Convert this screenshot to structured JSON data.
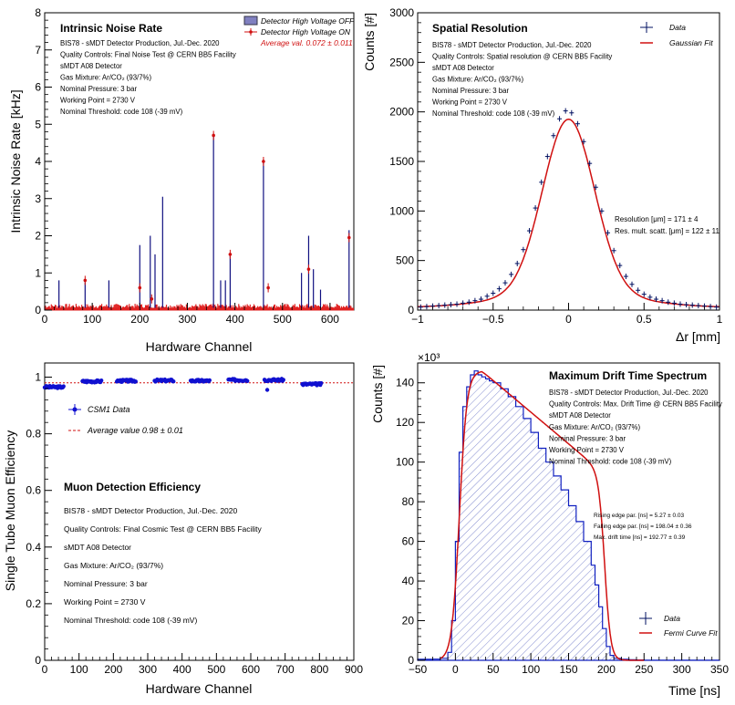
{
  "chart_data": [
    {
      "id": "noise",
      "type": "bar",
      "title": "Intrinsic Noise Rate",
      "xlabel": "Hardware Channel",
      "ylabel": "Intrinsic Noise Rate [kHz]",
      "xlim": [
        0,
        650
      ],
      "ylim": [
        0,
        8
      ],
      "xticks": [
        0,
        100,
        200,
        300,
        400,
        500,
        600
      ],
      "yticks": [
        0,
        1,
        2,
        3,
        4,
        5,
        6,
        7,
        8
      ],
      "legend": {
        "off": "Detector High Voltage OFF",
        "on": "Detector High Voltage ON",
        "avg": "Average val. 0.072 ± 0.011"
      },
      "info": [
        "BIS78 - sMDT Detector Production, Jul.-Dec. 2020",
        "Quality Controls: Final Noise Test @ CERN BB5 Facility",
        "sMDT A08 Detector",
        "Gas Mixture: Ar/CO₂ (93/7%)",
        "Nominal Pressure: 3 bar",
        "Working Point = 2730 V",
        "Nominal Threshold: code 108 (-39 mV)"
      ],
      "spikes": [
        {
          "x": 30,
          "y": 0.8
        },
        {
          "x": 85,
          "y": 0.75
        },
        {
          "x": 135,
          "y": 0.8
        },
        {
          "x": 200,
          "y": 1.75
        },
        {
          "x": 222,
          "y": 2.0
        },
        {
          "x": 232,
          "y": 1.5
        },
        {
          "x": 248,
          "y": 3.05
        },
        {
          "x": 355,
          "y": 4.7
        },
        {
          "x": 370,
          "y": 0.8
        },
        {
          "x": 380,
          "y": 0.8
        },
        {
          "x": 390,
          "y": 1.5
        },
        {
          "x": 460,
          "y": 4.05
        },
        {
          "x": 540,
          "y": 1.0
        },
        {
          "x": 555,
          "y": 2.0
        },
        {
          "x": 565,
          "y": 1.1
        },
        {
          "x": 580,
          "y": 0.55
        },
        {
          "x": 640,
          "y": 2.15
        }
      ],
      "points": [
        {
          "x": 85,
          "y": 0.8
        },
        {
          "x": 200,
          "y": 0.6
        },
        {
          "x": 355,
          "y": 4.7
        },
        {
          "x": 390,
          "y": 1.5
        },
        {
          "x": 460,
          "y": 4.0
        },
        {
          "x": 555,
          "y": 1.1
        },
        {
          "x": 640,
          "y": 1.95
        },
        {
          "x": 225,
          "y": 0.3
        },
        {
          "x": 470,
          "y": 0.6
        }
      ]
    },
    {
      "id": "spatial",
      "type": "scatter",
      "title": "Spatial Resolution",
      "xlabel": "Δr [mm]",
      "ylabel": "Counts [#]",
      "xlim": [
        -1,
        1
      ],
      "ylim": [
        0,
        3000
      ],
      "xticks": [
        -1,
        -0.5,
        0,
        0.5,
        1
      ],
      "xtick_labels": [
        "−1",
        "−0.5",
        "0",
        "0.5",
        "1"
      ],
      "yticks": [
        0,
        500,
        1000,
        1500,
        2000,
        2500,
        3000
      ],
      "legend": {
        "data": "Data",
        "fit": "Gaussian Fit"
      },
      "info": [
        "BIS78 - sMDT Detector Production, Jul.-Dec. 2020",
        "Quality Controls: Spatial resolution @ CERN BB5 Facility",
        "sMDT A08 Detector",
        "Gas Mixture: Ar/CO₂ (93/7%)",
        "Nominal Pressure: 3 bar",
        "Working Point = 2730 V",
        "Nominal Threshold: code 108 (-39 mV)"
      ],
      "fit_params": [
        "Resolution [μm] = 171 ± 4",
        "Res. mult. scatt. [μm] = 122 ± 11"
      ],
      "fit": {
        "a1": 1750,
        "s1": 0.171,
        "a2": 150,
        "s2": 0.42
      },
      "points_x": [
        -0.98,
        -0.94,
        -0.9,
        -0.86,
        -0.82,
        -0.78,
        -0.74,
        -0.7,
        -0.66,
        -0.62,
        -0.58,
        -0.54,
        -0.5,
        -0.46,
        -0.42,
        -0.38,
        -0.34,
        -0.3,
        -0.26,
        -0.22,
        -0.18,
        -0.14,
        -0.1,
        -0.06,
        -0.02,
        0.02,
        0.06,
        0.1,
        0.14,
        0.18,
        0.22,
        0.26,
        0.3,
        0.34,
        0.38,
        0.42,
        0.46,
        0.5,
        0.54,
        0.58,
        0.62,
        0.66,
        0.7,
        0.74,
        0.78,
        0.82,
        0.86,
        0.9,
        0.94,
        0.98
      ],
      "points_y": [
        30,
        35,
        40,
        45,
        50,
        55,
        60,
        70,
        80,
        95,
        110,
        140,
        170,
        215,
        275,
        360,
        470,
        610,
        800,
        1030,
        1290,
        1550,
        1760,
        1930,
        2010,
        1990,
        1880,
        1700,
        1480,
        1240,
        1000,
        780,
        600,
        450,
        340,
        260,
        200,
        160,
        130,
        110,
        95,
        80,
        70,
        60,
        55,
        50,
        45,
        40,
        35,
        30
      ]
    },
    {
      "id": "efficiency",
      "type": "scatter",
      "title": "Muon Detection Efficiency",
      "xlabel": "Hardware Channel",
      "ylabel": "Single Tube Muon Efficiency",
      "xlim": [
        0,
        900
      ],
      "ylim": [
        0,
        1.05
      ],
      "xticks": [
        0,
        100,
        200,
        300,
        400,
        500,
        600,
        700,
        800,
        900
      ],
      "yticks": [
        0,
        0.2,
        0.4,
        0.6,
        0.8,
        1.0
      ],
      "ytick_labels": [
        "0",
        "0.2",
        "0.4",
        "0.6",
        "0.8",
        "1"
      ],
      "legend": {
        "data": "CSM1 Data",
        "avg": "Average value 0.98 ± 0.01"
      },
      "average": 0.98,
      "info": [
        "BIS78 - sMDT Detector Production, Jul.-Dec. 2020",
        "Quality Controls: Final Cosmic Test @ CERN BB5 Facility",
        "sMDT A08 Detector",
        "Gas Mixture: Ar/CO₂ (93/7%)",
        "Nominal Pressure: 3 bar",
        "Working Point = 2730 V",
        "Nominal Threshold: code 108 (-39 mV)"
      ],
      "groups": [
        {
          "start": 0,
          "end": 55,
          "value": 0.965
        },
        {
          "start": 110,
          "end": 165,
          "value": 0.985
        },
        {
          "start": 210,
          "end": 265,
          "value": 0.987
        },
        {
          "start": 320,
          "end": 375,
          "value": 0.988
        },
        {
          "start": 425,
          "end": 480,
          "value": 0.987
        },
        {
          "start": 535,
          "end": 590,
          "value": 0.99
        },
        {
          "start": 640,
          "end": 695,
          "value": 0.99
        },
        {
          "start": 750,
          "end": 805,
          "value": 0.975
        }
      ],
      "outliers": [
        {
          "x": 648,
          "y": 0.955
        }
      ]
    },
    {
      "id": "drift",
      "type": "area",
      "title": "Maximum Drift Time Spectrum",
      "xlabel": "Time [ns]",
      "ylabel": "Counts [#]",
      "yexp": "×10³",
      "xlim": [
        -50,
        350
      ],
      "ylim": [
        0,
        150
      ],
      "xticks": [
        -50,
        0,
        50,
        100,
        150,
        200,
        250,
        300,
        350
      ],
      "xtick_labels": [
        "−50",
        "0",
        "50",
        "100",
        "150",
        "200",
        "250",
        "300",
        "350"
      ],
      "yticks": [
        0,
        20,
        40,
        60,
        80,
        100,
        120,
        140
      ],
      "legend": {
        "data": "Data",
        "fit": "Fermi Curve Fit"
      },
      "info": [
        "BIS78 - sMDT Detector Production, Jul.-Dec. 2020",
        "Quality Controls: Max. Drift Time @ CERN BB5 Facility",
        "sMDT A08 Detector",
        "Gas Mixture: Ar/CO₂ (93/7%)",
        "Nominal Pressure: 3 bar",
        "Working Point = 2730 V",
        "Nominal Threshold: code 108 (-39 mV)"
      ],
      "fit_params": [
        "Rising edge par. [ns] = 5.27 ± 0.03",
        "Falling edge par. [ns] = 198.04 ± 0.36",
        "Max. drift time [ns] = 192.77 ± 0.39"
      ],
      "hist_x": [
        -50,
        -40,
        -30,
        -20,
        -10,
        -5,
        0,
        5,
        10,
        15,
        20,
        25,
        30,
        35,
        40,
        45,
        50,
        60,
        70,
        80,
        90,
        100,
        110,
        120,
        130,
        140,
        150,
        160,
        170,
        180,
        185,
        190,
        195,
        200,
        205,
        210,
        220,
        230,
        240,
        250,
        260,
        280,
        300,
        320,
        340
      ],
      "hist_y": [
        0.5,
        0.5,
        0.6,
        1,
        4,
        20,
        60,
        105,
        128,
        138,
        144,
        146,
        144,
        143,
        142,
        141,
        140,
        137,
        133,
        128,
        122,
        115,
        107,
        100,
        93,
        86,
        78,
        70,
        60,
        48,
        38,
        27,
        16,
        7,
        2.5,
        1,
        0.5,
        0.3,
        0.2,
        0.1,
        0.1,
        0.1,
        0.1,
        0.1,
        0.1
      ]
    }
  ]
}
